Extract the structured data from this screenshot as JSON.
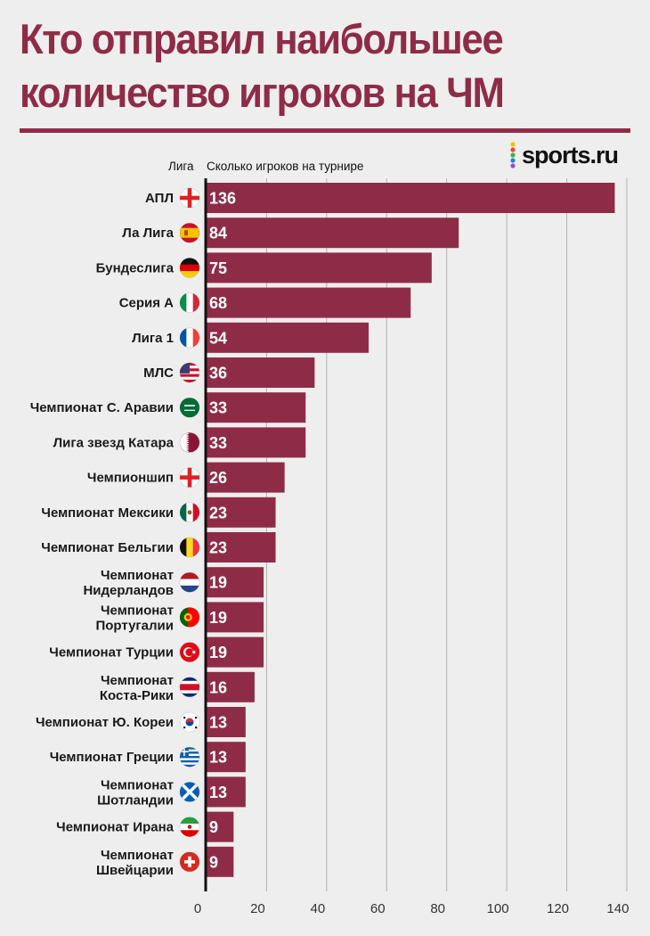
{
  "title": "Кто отправил наибольшее количество игроков на ЧМ",
  "brand": {
    "name": "sports.ru",
    "dot_colors": [
      "#f2c200",
      "#e9483d",
      "#3db24a",
      "#2f7fd0",
      "#9b4fc9"
    ]
  },
  "chart_data": {
    "type": "bar",
    "orientation": "horizontal",
    "category_header": "Лига",
    "value_header": "Сколько игроков на турнире",
    "categories": [
      "АПЛ",
      "Ла Лига",
      "Бундеслига",
      "Серия А",
      "Лига 1",
      "МЛС",
      "Чемпионат С. Аравии",
      "Лига звезд Катара",
      "Чемпионшип",
      "Чемпионат Мексики",
      "Чемпионат Бельгии",
      "Чемпионат Нидерландов",
      "Чемпионат Португалии",
      "Чемпионат Турции",
      "Чемпионат Коста-Рики",
      "Чемпионат Ю. Кореи",
      "Чемпионат Греции",
      "Чемпионат Шотландии",
      "Чемпионат Ирана",
      "Чемпионат Швейцарии"
    ],
    "values": [
      136,
      84,
      75,
      68,
      54,
      36,
      33,
      33,
      26,
      23,
      23,
      19,
      19,
      19,
      16,
      13,
      13,
      13,
      9,
      9
    ],
    "flags": [
      "england-flag",
      "spain-flag",
      "germany-flag",
      "italy-flag",
      "france-flag",
      "usa-flag",
      "saudi-arabia-flag",
      "qatar-flag",
      "england-flag",
      "mexico-flag",
      "belgium-flag",
      "netherlands-flag",
      "portugal-flag",
      "turkey-flag",
      "costa-rica-flag",
      "south-korea-flag",
      "greece-flag",
      "scotland-flag",
      "iran-flag",
      "switzerland-flag"
    ],
    "xlim": [
      0,
      140
    ],
    "xticks": [
      0,
      20,
      40,
      60,
      80,
      100,
      120,
      140
    ],
    "grid": true,
    "bar_color": "#8e2c48"
  }
}
